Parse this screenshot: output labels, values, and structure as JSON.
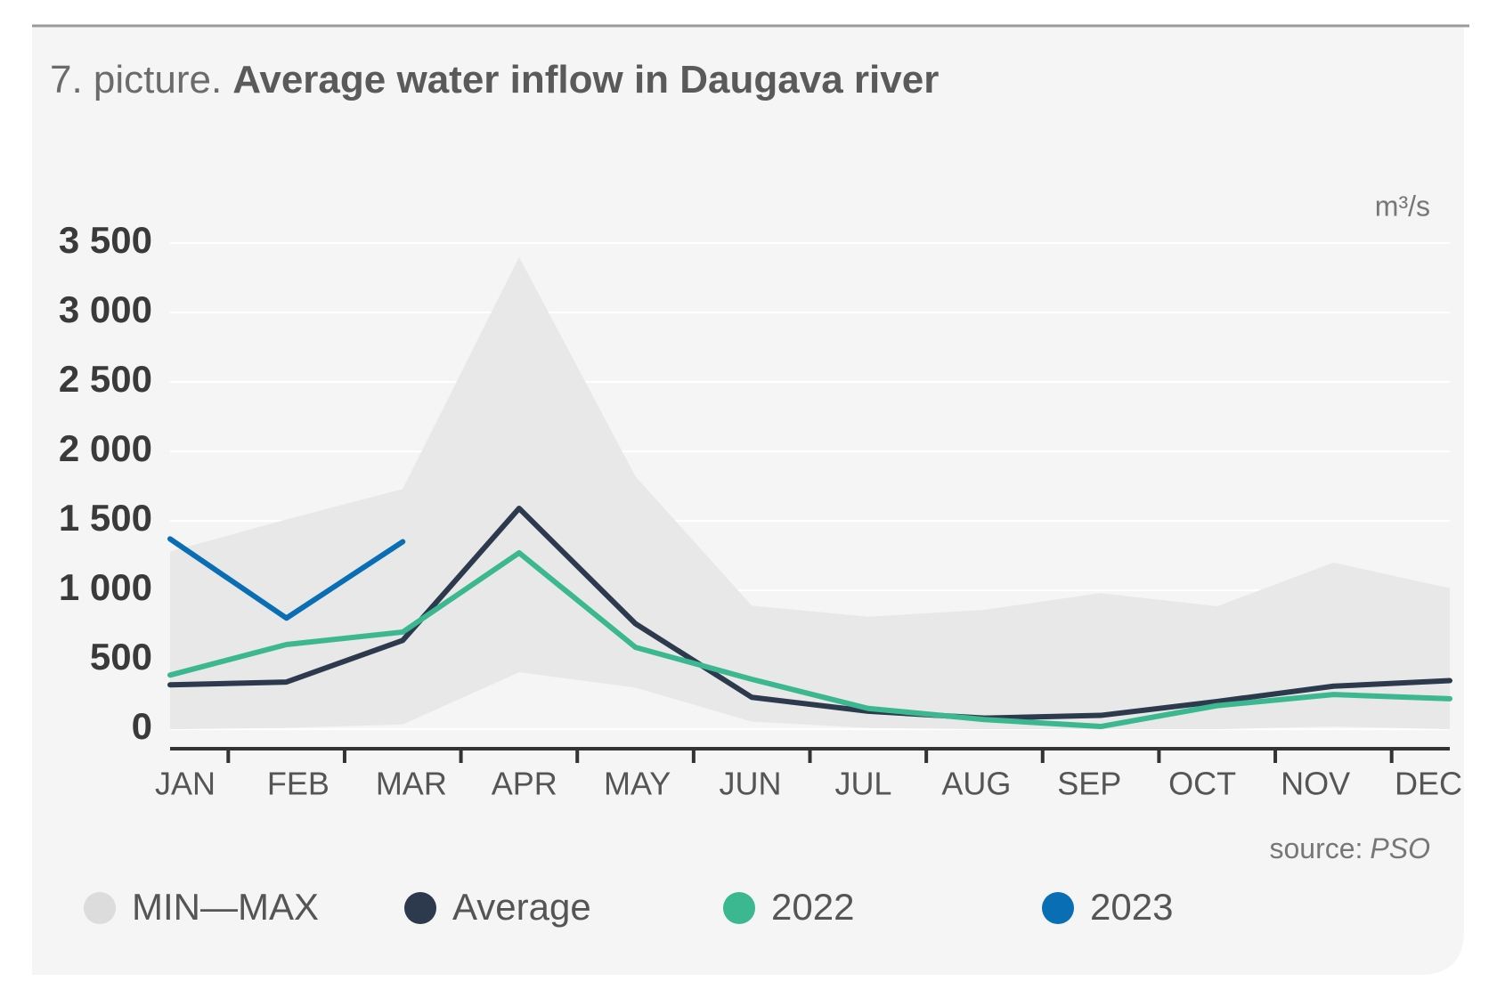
{
  "chart_data": {
    "type": "line",
    "figure_label": "7. picture.",
    "title": "Average water inflow in Daugava river",
    "y_unit": "m³/s",
    "source_label": "source:",
    "source": "PSO",
    "categories": [
      "JAN",
      "FEB",
      "MAR",
      "APR",
      "MAY",
      "JUN",
      "JUL",
      "AUG",
      "SEP",
      "OCT",
      "NOV",
      "DEC"
    ],
    "band": {
      "name": "MIN—MAX",
      "color": "#e8e8e8",
      "min": [
        0,
        10,
        35,
        410,
        300,
        55,
        10,
        0,
        0,
        0,
        20,
        0
      ],
      "max": [
        1280,
        1510,
        1730,
        3400,
        1820,
        890,
        810,
        860,
        980,
        885,
        1200,
        1015
      ]
    },
    "series": [
      {
        "name": "Average",
        "color": "#2d3a4d",
        "values": [
          320,
          340,
          640,
          1590,
          760,
          230,
          130,
          80,
          100,
          200,
          310,
          350
        ]
      },
      {
        "name": "2022",
        "color": "#3bb88f",
        "values": [
          390,
          610,
          700,
          1270,
          590,
          360,
          150,
          70,
          20,
          170,
          250,
          220
        ]
      },
      {
        "name": "2023",
        "color": "#0a6eb4",
        "values": [
          1370,
          800,
          1350,
          null,
          null,
          null,
          null,
          null,
          null,
          null,
          null,
          null
        ]
      }
    ],
    "ylim": [
      -140,
      3500
    ],
    "yticks": [
      0,
      500,
      {
        "value": 1000,
        "label": "1 000"
      },
      {
        "value": 1500,
        "label": "1 500"
      },
      {
        "value": 2000,
        "label": "2 000"
      },
      {
        "value": 2500,
        "label": "2 500"
      },
      {
        "value": 3000,
        "label": "3 000"
      },
      {
        "value": 3500,
        "label": "3 500"
      }
    ],
    "grid": true
  }
}
